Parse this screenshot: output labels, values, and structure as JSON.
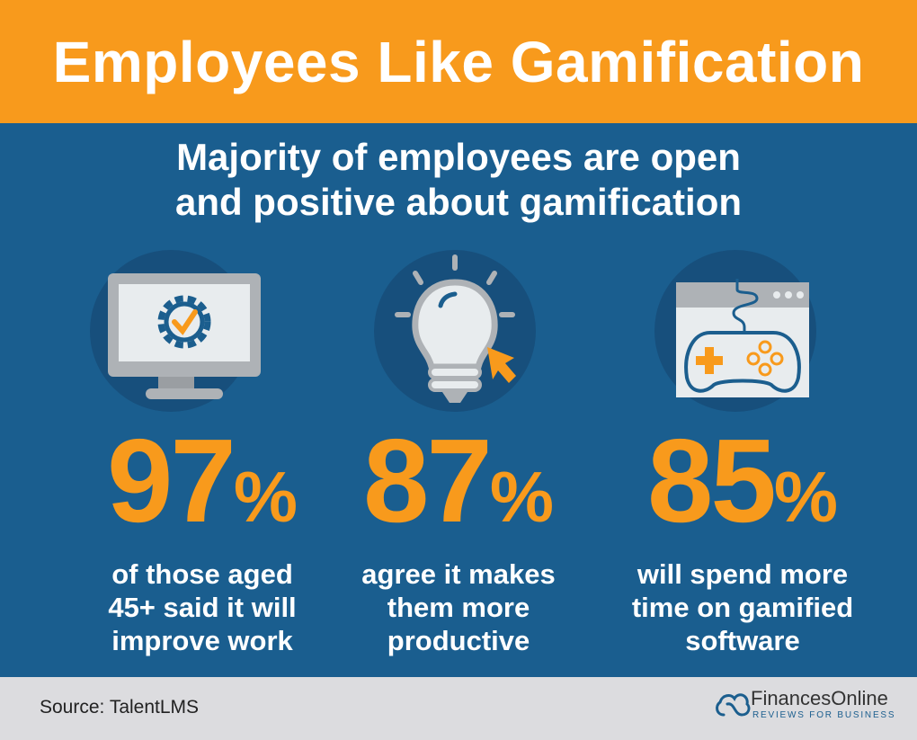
{
  "header": {
    "title": "Employees Like Gamification"
  },
  "subtitle": {
    "line1": "Majority of employees are open",
    "line2": "and positive about gamification"
  },
  "stats": [
    {
      "icon": "monitor-gear-check-icon",
      "value": "97",
      "unit": "%",
      "line1": "of those aged",
      "line2": "45+ said it will",
      "line3": "improve work"
    },
    {
      "icon": "lightbulb-cursor-icon",
      "value": "87",
      "unit": "%",
      "line1": "agree it makes",
      "line2": "them more",
      "line3": "productive"
    },
    {
      "icon": "gamepad-window-icon",
      "value": "85",
      "unit": "%",
      "line1": "will spend more",
      "line2": "time on gamified",
      "line3": "software"
    }
  ],
  "footer": {
    "source": "Source: TalentLMS",
    "brand": "FinancesOnline",
    "tagline": "REVIEWS FOR BUSINESS"
  },
  "colors": {
    "orange": "#f89a1c",
    "blue": "#1a5e8f",
    "dark_blue": "#174f7c",
    "footer": "#dcdcdf"
  }
}
